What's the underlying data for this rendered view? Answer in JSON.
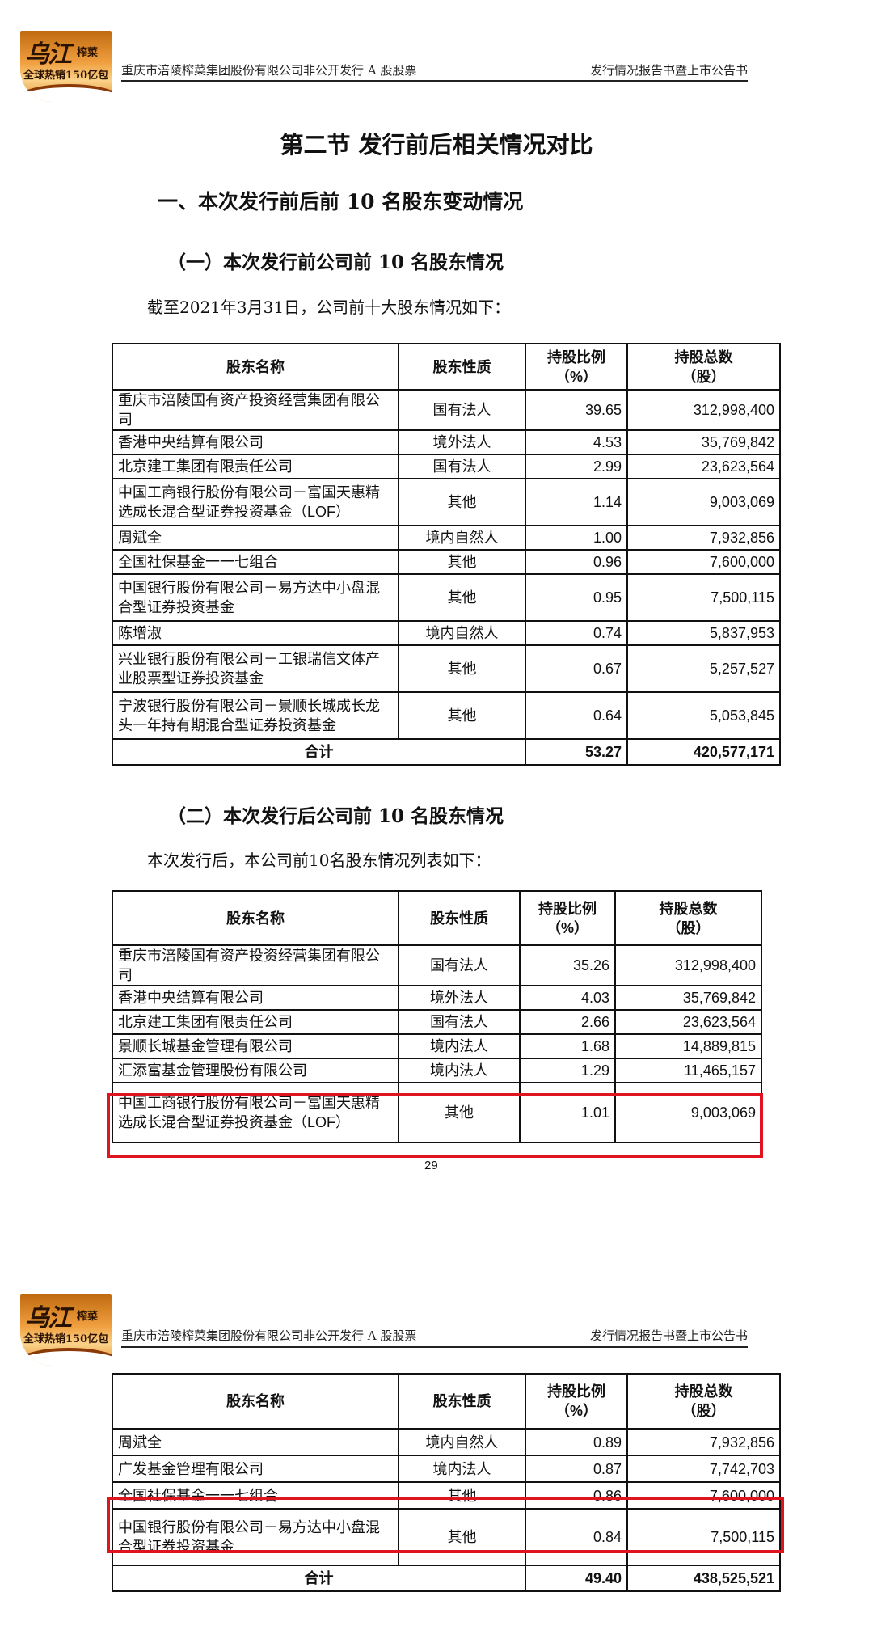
{
  "logo": {
    "brand": "乌江",
    "product": "榨菜",
    "slogan": "全球热销150亿包"
  },
  "header": {
    "left": "重庆市涪陵榨菜集团股份有限公司非公开发行 A 股股票",
    "right": "发行情况报告书暨上市公告书"
  },
  "section_title": "第二节  发行前后相关情况对比",
  "subsection_title": "一、本次发行前后前 10 名股东变动情况",
  "columns": [
    "股东名称",
    "股东性质",
    "持股比例（%）",
    "持股总数（股）"
  ],
  "before": {
    "title": "（一）本次发行前公司前 10 名股东情况",
    "intro": "截至2021年3月31日，公司前十大股东情况如下：",
    "rows": [
      [
        "重庆市涪陵国有资产投资经营集团有限公司",
        "国有法人",
        "39.65",
        "312,998,400"
      ],
      [
        "香港中央结算有限公司",
        "境外法人",
        "4.53",
        "35,769,842"
      ],
      [
        "北京建工集团有限责任公司",
        "国有法人",
        "2.99",
        "23,623,564"
      ],
      [
        "中国工商银行股份有限公司－富国天惠精选成长混合型证券投资基金（LOF）",
        "其他",
        "1.14",
        "9,003,069"
      ],
      [
        "周斌全",
        "境内自然人",
        "1.00",
        "7,932,856"
      ],
      [
        "全国社保基金一一七组合",
        "其他",
        "0.96",
        "7,600,000"
      ],
      [
        "中国银行股份有限公司－易方达中小盘混合型证券投资基金",
        "其他",
        "0.95",
        "7,500,115"
      ],
      [
        "陈增淑",
        "境内自然人",
        "0.74",
        "5,837,953"
      ],
      [
        "兴业银行股份有限公司－工银瑞信文体产业股票型证券投资基金",
        "其他",
        "0.67",
        "5,257,527"
      ],
      [
        "宁波银行股份有限公司－景顺长城成长龙头一年持有期混合型证券投资基金",
        "其他",
        "0.64",
        "5,053,845"
      ]
    ],
    "total": {
      "label": "合计",
      "ratio": "53.27",
      "shares": "420,577,171"
    }
  },
  "after": {
    "title": "（二）本次发行后公司前 10 名股东情况",
    "intro": "本次发行后，本公司前10名股东情况列表如下：",
    "rows_page1": [
      [
        "重庆市涪陵国有资产投资经营集团有限公司",
        "国有法人",
        "35.26",
        "312,998,400"
      ],
      [
        "香港中央结算有限公司",
        "境外法人",
        "4.03",
        "35,769,842"
      ],
      [
        "北京建工集团有限责任公司",
        "国有法人",
        "2.66",
        "23,623,564"
      ],
      [
        "景顺长城基金管理有限公司",
        "境内法人",
        "1.68",
        "14,889,815"
      ],
      [
        "汇添富基金管理股份有限公司",
        "境内法人",
        "1.29",
        "11,465,157"
      ],
      [
        "中国工商银行股份有限公司－富国天惠精选成长混合型证券投资基金（LOF）",
        "其他",
        "1.01",
        "9,003,069"
      ]
    ],
    "rows_page2": [
      [
        "周斌全",
        "境内自然人",
        "0.89",
        "7,932,856"
      ],
      [
        "广发基金管理有限公司",
        "境内法人",
        "0.87",
        "7,742,703"
      ],
      [
        "全国社保基金一一七组合",
        "其他",
        "0.86",
        "7,600,000"
      ],
      [
        "中国银行股份有限公司－易方达中小盘混合型证券投资基金",
        "其他",
        "0.84",
        "7,500,115"
      ]
    ],
    "total": {
      "label": "合计",
      "ratio": "49.40",
      "shares": "438,525,521"
    }
  },
  "page_number": "29",
  "highlight_color": "#e0141e"
}
